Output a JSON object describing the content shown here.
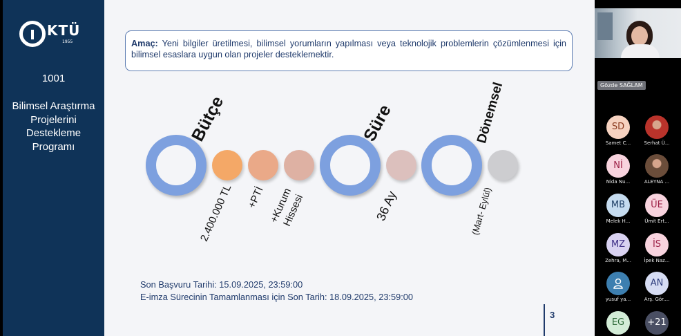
{
  "slide": {
    "logo_text": "KTÜ",
    "logo_year": "1955",
    "program_number": "1001",
    "program_name": "Bilimsel Araştırma\nProjelerini\nDestekleme\nProgramı",
    "goal_label": "Amaç:",
    "goal_text": "Yeni bilgiler üretilmesi, bilimsel yorumların yapılması veya teknolojik problemlerin çözümlenmesi için bilimsel esaslara uygun olan projeler desteklemektir.",
    "budget_label": "Bütçe",
    "budget_amount": "2.400.000 TL",
    "budget_pti": "+PTİ",
    "budget_share_line1": "+Kurum",
    "budget_share_line2": "Hissesi",
    "duration_label": "Süre",
    "duration_value": "36 Ay",
    "period_label": "Dönemsel",
    "period_value": "(Mart- Eylül)",
    "deadline_apply": "Son Başvuru Tarihi: 15.09.2025, 23:59:00",
    "deadline_esign": "E-imza Sürecinin Tamamlanması için Son Tarih: 18.09.2025, 23:59:00",
    "page_number": "3",
    "colors": {
      "navy": "#0f3358",
      "ring_blue": "#7da0df",
      "dot_orange": "#f4a867",
      "dot_salmon": "#eaa988",
      "dot_rose": "#deb1a3",
      "dot_pink": "#dcc0bd",
      "dot_gray": "#cdcdd0"
    }
  },
  "meeting": {
    "active_speaker": "Gözde SAĞLAM",
    "participants": [
      {
        "initials": "SD",
        "name": "Samet C...",
        "avatar_color": "#f6d2c0",
        "text_color": "#8a3a1f"
      },
      {
        "initials": "",
        "name": "Serhat Ü...",
        "avatar_color": "#b9332b",
        "text_color": "#ffffff",
        "photo": true
      },
      {
        "initials": "Nİ",
        "name": "Nida Nu...",
        "avatar_color": "#f8d3de",
        "text_color": "#9c1f45"
      },
      {
        "initials": "",
        "name": "ALEYNA ...",
        "avatar_color": "#6b4d3a",
        "text_color": "#ffffff",
        "photo": true
      },
      {
        "initials": "MB",
        "name": "Melek H...",
        "avatar_color": "#c5dbef",
        "text_color": "#1f3f66"
      },
      {
        "initials": "ÜE",
        "name": "Ümit Ert...",
        "avatar_color": "#f8d3de",
        "text_color": "#9c1f45"
      },
      {
        "initials": "MZ",
        "name": "Zehra, M...",
        "avatar_color": "#d9d2f1",
        "text_color": "#3f2f86"
      },
      {
        "initials": "İS",
        "name": "İpek Naz...",
        "avatar_color": "#f8d3de",
        "text_color": "#9c1f45"
      },
      {
        "initials": "",
        "name": "yusuf ya...",
        "avatar_color": "#3d7fb0",
        "text_color": "#ffffff",
        "icon": "person-icon"
      },
      {
        "initials": "AN",
        "name": "Arş. Gör....",
        "avatar_color": "#d6dcf3",
        "text_color": "#2b3a7a"
      },
      {
        "initials": "EG",
        "name": "",
        "avatar_color": "#d3ecd7",
        "text_color": "#2f6b3a"
      },
      {
        "initials": "+21",
        "name": "",
        "avatar_color": "#4a4f63",
        "text_color": "#ffffff"
      }
    ]
  }
}
